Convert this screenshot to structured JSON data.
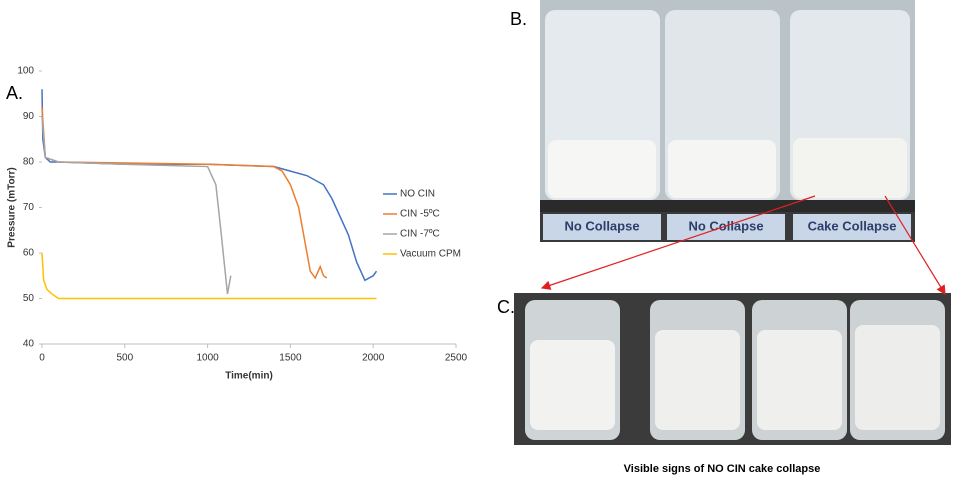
{
  "chart_data": {
    "type": "line",
    "ylabel": "Pressure (mTorr)",
    "xlabel": "Time(min)",
    "xlim": [
      0,
      2500
    ],
    "xticks": [
      0,
      500,
      1000,
      1500,
      2000,
      2500
    ],
    "ylim": [
      40,
      100
    ],
    "yticks": [
      40,
      50,
      60,
      70,
      80,
      90,
      100
    ],
    "legend": "right",
    "series": [
      {
        "name": "NO CIN",
        "color": "#4472c4",
        "x": [
          0,
          5,
          20,
          50,
          100,
          500,
          1000,
          1400,
          1500,
          1600,
          1700,
          1750,
          1800,
          1850,
          1900,
          1950,
          2000,
          2020
        ],
        "values": [
          96,
          85,
          81,
          80,
          80,
          79.5,
          79.5,
          79,
          78,
          77,
          75,
          72,
          68,
          64,
          58,
          54,
          55,
          56
        ]
      },
      {
        "name": "CIN -5ºC",
        "color": "#ed7d31",
        "x": [
          0,
          20,
          100,
          1000,
          1400,
          1450,
          1500,
          1550,
          1600,
          1620,
          1650,
          1680,
          1700,
          1720
        ],
        "values": [
          92,
          81,
          80,
          79.5,
          79,
          78,
          75,
          70,
          60,
          56,
          54.5,
          57,
          55,
          54.5
        ]
      },
      {
        "name": "CIN -7ºC",
        "color": "#a5a5a5",
        "x": [
          0,
          20,
          100,
          500,
          1000,
          1050,
          1080,
          1100,
          1120,
          1130,
          1140
        ],
        "values": [
          90,
          81,
          80,
          79.5,
          79,
          75,
          65,
          58,
          51,
          53,
          55
        ]
      },
      {
        "name": "Vacuum CPM",
        "color": "#ffc000",
        "x": [
          0,
          10,
          30,
          60,
          100,
          500,
          1000,
          1500,
          2000,
          2020
        ],
        "values": [
          60,
          54,
          52,
          51,
          50,
          50,
          50,
          50,
          50,
          50
        ]
      }
    ]
  },
  "panel_labels": [
    "A.",
    "B.",
    "C."
  ],
  "photo_labels": [
    "No Collapse",
    "No Collapse",
    "Cake Collapse"
  ],
  "caption": "Visible signs of NO CIN cake collapse"
}
